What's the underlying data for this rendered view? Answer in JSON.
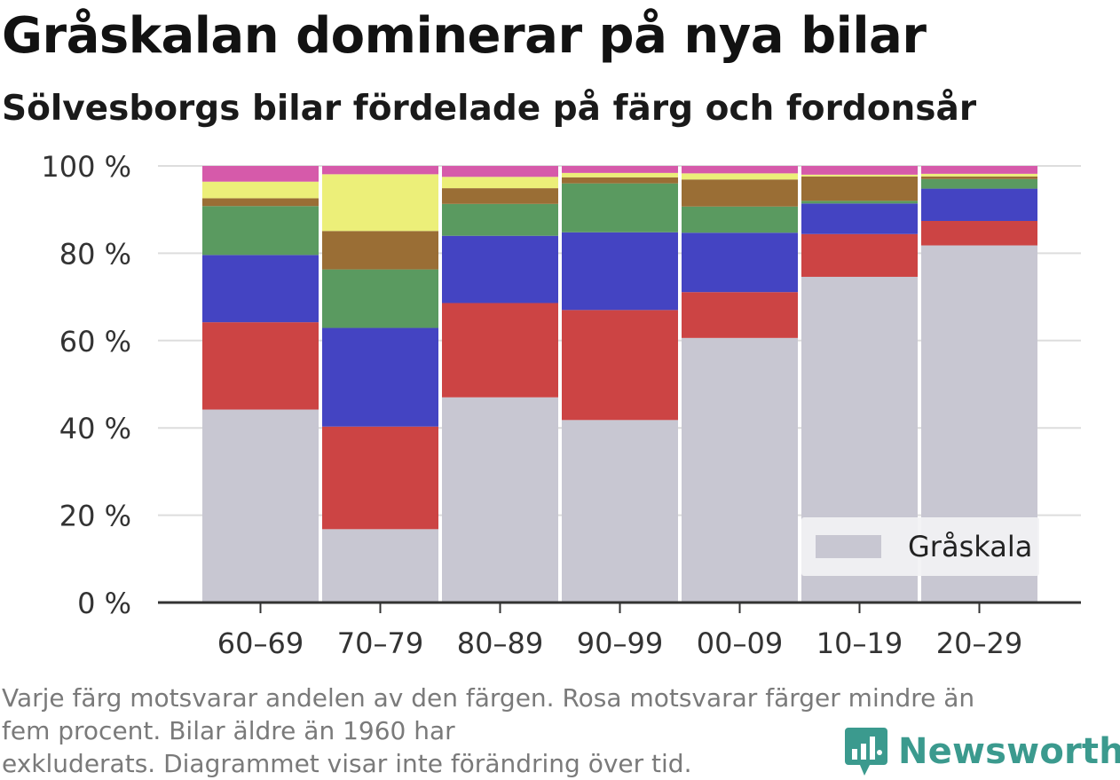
{
  "title": "Gråskalan dominerar på nya bilar",
  "subtitle": "Sölvesborgs bilar fördelade på färg och fordonsår",
  "footnote": [
    "Varje färg motsvarar andelen av den färgen. Rosa motsvarar färger mindre än",
    "fem procent. Bilar äldre än 1960 har",
    "exkluderats. Diagrammet visar inte förändring över tid."
  ],
  "brand": {
    "name": "Newsworthy",
    "icon": "newsworthy-logo-icon",
    "color": "#3b9a8e"
  },
  "chart_data": {
    "type": "bar",
    "stacked": true,
    "categories": [
      "60–69",
      "70–79",
      "80–89",
      "90–99",
      "00–09",
      "10–19",
      "20–29"
    ],
    "ylim": [
      0,
      100
    ],
    "yticks": [
      0,
      20,
      40,
      60,
      80,
      100
    ],
    "ytick_labels": [
      "0 %",
      "20 %",
      "40 %",
      "60 %",
      "80 %",
      "100 %"
    ],
    "grid": true,
    "legend": {
      "position": "bottom-right",
      "entries": [
        "Gråskala"
      ]
    },
    "series": [
      {
        "name": "Gråskala",
        "color": "#c8c7d2",
        "values": [
          44.2,
          16.8,
          47.0,
          41.8,
          60.6,
          74.6,
          81.8
        ]
      },
      {
        "color": "#cc4444",
        "values": [
          20.0,
          23.5,
          21.6,
          25.2,
          10.5,
          9.8,
          5.6
        ]
      },
      {
        "color": "#4444c2",
        "values": [
          15.4,
          22.6,
          15.4,
          17.8,
          13.6,
          7.0,
          7.4
        ]
      },
      {
        "color": "#5a9a60",
        "values": [
          11.2,
          13.4,
          7.3,
          11.2,
          6.0,
          0.6,
          2.2
        ]
      },
      {
        "color": "#9a6e35",
        "values": [
          1.8,
          8.8,
          3.6,
          1.4,
          6.2,
          5.6,
          0.6
        ]
      },
      {
        "color": "#ecef79",
        "values": [
          3.8,
          13.0,
          2.6,
          1.0,
          1.4,
          0.4,
          0.6
        ]
      },
      {
        "color": "#d65aaa",
        "values": [
          3.6,
          1.9,
          2.5,
          1.6,
          1.7,
          2.0,
          1.8
        ]
      }
    ]
  }
}
